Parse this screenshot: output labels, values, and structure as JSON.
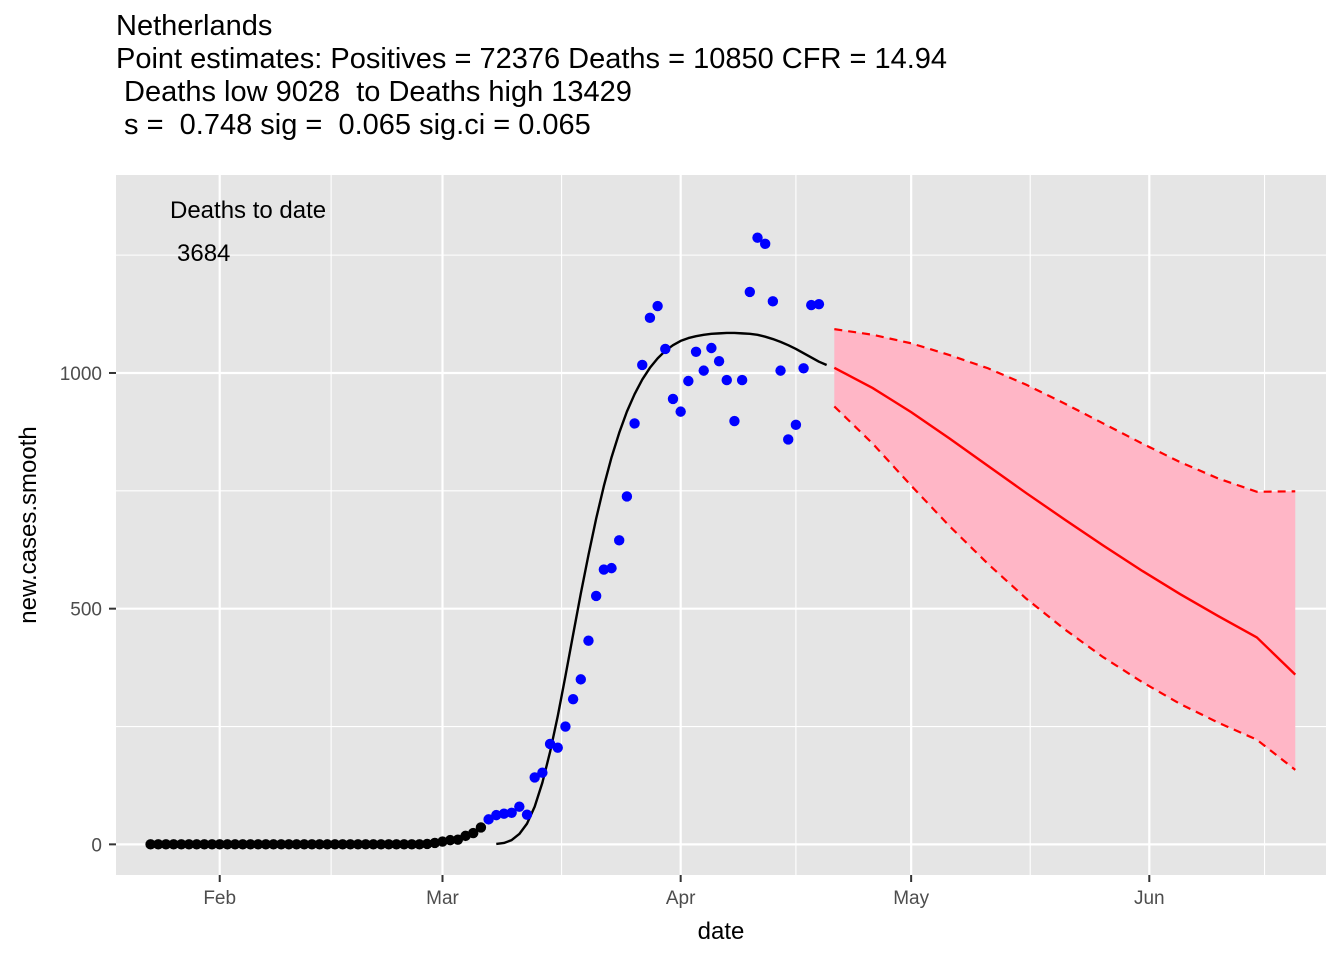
{
  "chart_data": {
    "type": "scatter",
    "title_lines": [
      "Netherlands",
      "Point estimates: Positives = 72376 Deaths = 10850 CFR = 14.94",
      " Deaths low 9028  to Deaths high 13429",
      " s =  0.748 sig =  0.065 sig.ci = 0.065"
    ],
    "xlabel": "date",
    "ylabel": "new.cases.smooth",
    "x_ticks": [
      "Feb",
      "Mar",
      "Apr",
      "May",
      "Jun"
    ],
    "y_ticks": [
      0,
      500,
      1000
    ],
    "ylim": [
      -65,
      1420
    ],
    "xlim_days": [
      -13.5,
      144
    ],
    "grid": true,
    "annotations": [
      "Deaths to date",
      "3684"
    ],
    "colors": {
      "panel": "#e5e5e5",
      "grid": "#ffffff",
      "observed_early": "#000000",
      "observed_recent": "#0000ff",
      "fit_line": "#000000",
      "forecast": "#ff0000",
      "forecast_band": "#ffb6c6"
    },
    "series": [
      {
        "name": "observed_early",
        "color": "#000000",
        "points": [
          [
            -9,
            0
          ],
          [
            -8,
            0
          ],
          [
            -7,
            0
          ],
          [
            -6,
            0
          ],
          [
            -5,
            0
          ],
          [
            -4,
            0
          ],
          [
            -3,
            0
          ],
          [
            -2,
            0
          ],
          [
            -1,
            0
          ],
          [
            0,
            0
          ],
          [
            1,
            0
          ],
          [
            2,
            0
          ],
          [
            3,
            0
          ],
          [
            4,
            0
          ],
          [
            5,
            0
          ],
          [
            6,
            0
          ],
          [
            7,
            0
          ],
          [
            8,
            0
          ],
          [
            9,
            0
          ],
          [
            10,
            0
          ],
          [
            11,
            0
          ],
          [
            12,
            0
          ],
          [
            13,
            0
          ],
          [
            14,
            0
          ],
          [
            15,
            0
          ],
          [
            16,
            0
          ],
          [
            17,
            0
          ],
          [
            18,
            0
          ],
          [
            19,
            0
          ],
          [
            20,
            0
          ],
          [
            21,
            0
          ],
          [
            22,
            0
          ],
          [
            23,
            0
          ],
          [
            24,
            0
          ],
          [
            25,
            0
          ],
          [
            26,
            0
          ],
          [
            27,
            1
          ],
          [
            28,
            3
          ],
          [
            29,
            6
          ],
          [
            30,
            9
          ],
          [
            31,
            10
          ],
          [
            32,
            18
          ],
          [
            33,
            24
          ],
          [
            34,
            36
          ]
        ]
      },
      {
        "name": "observed_recent",
        "color": "#0000ff",
        "points": [
          [
            35,
            53
          ],
          [
            36,
            62
          ],
          [
            37,
            65
          ],
          [
            38,
            67
          ],
          [
            39,
            80
          ],
          [
            40,
            63
          ],
          [
            41,
            142
          ],
          [
            42,
            152
          ],
          [
            43,
            213
          ],
          [
            44,
            205
          ],
          [
            45,
            250
          ],
          [
            46,
            308
          ],
          [
            47,
            350
          ],
          [
            48,
            432
          ],
          [
            49,
            527
          ],
          [
            50,
            583
          ],
          [
            51,
            586
          ],
          [
            52,
            645
          ],
          [
            53,
            738
          ],
          [
            54,
            893
          ],
          [
            55,
            1017
          ],
          [
            56,
            1117
          ],
          [
            57,
            1142
          ],
          [
            58,
            1051
          ],
          [
            59,
            945
          ],
          [
            60,
            918
          ],
          [
            61,
            983
          ],
          [
            62,
            1045
          ],
          [
            63,
            1005
          ],
          [
            64,
            1053
          ],
          [
            65,
            1025
          ],
          [
            66,
            985
          ],
          [
            67,
            898
          ],
          [
            68,
            985
          ],
          [
            69,
            1172
          ],
          [
            70,
            1287
          ],
          [
            71,
            1274
          ],
          [
            72,
            1152
          ],
          [
            73,
            1005
          ],
          [
            74,
            859
          ],
          [
            75,
            890
          ],
          [
            76,
            1010
          ],
          [
            77,
            1144
          ],
          [
            78,
            1146
          ]
        ]
      },
      {
        "name": "fit",
        "color": "#000000",
        "points": [
          [
            36,
            1
          ],
          [
            37,
            3
          ],
          [
            38,
            9
          ],
          [
            39,
            22
          ],
          [
            40,
            44
          ],
          [
            41,
            80
          ],
          [
            42,
            131
          ],
          [
            43,
            196
          ],
          [
            44,
            272
          ],
          [
            45,
            357
          ],
          [
            46,
            445
          ],
          [
            47,
            532
          ],
          [
            48,
            614
          ],
          [
            49,
            691
          ],
          [
            50,
            760
          ],
          [
            51,
            821
          ],
          [
            52,
            873
          ],
          [
            53,
            918
          ],
          [
            54,
            955
          ],
          [
            55,
            986
          ],
          [
            56,
            1011
          ],
          [
            57,
            1031
          ],
          [
            58,
            1047
          ],
          [
            59,
            1059
          ],
          [
            60,
            1068
          ],
          [
            61,
            1074
          ],
          [
            62,
            1078
          ],
          [
            63,
            1081
          ],
          [
            64,
            1083
          ],
          [
            65,
            1084
          ],
          [
            66,
            1085
          ],
          [
            67,
            1085
          ],
          [
            68,
            1084
          ],
          [
            69,
            1083
          ],
          [
            70,
            1081
          ],
          [
            71,
            1077
          ],
          [
            72,
            1072
          ],
          [
            73,
            1066
          ],
          [
            74,
            1059
          ],
          [
            75,
            1051
          ],
          [
            76,
            1042
          ],
          [
            77,
            1033
          ],
          [
            78,
            1024
          ],
          [
            79,
            1017
          ]
        ]
      },
      {
        "name": "forecast",
        "color": "#ff0000",
        "x": [
          80,
          85,
          90,
          95,
          100,
          105,
          110,
          115,
          120,
          125,
          130,
          135,
          140
        ],
        "center": [
          1011,
          968,
          917,
          861,
          803,
          745,
          689,
          634,
          581,
          531,
          484,
          439,
          360
        ],
        "upper": [
          1093,
          1081,
          1063,
          1038,
          1010,
          975,
          935,
          893,
          851,
          811,
          776,
          748,
          749
        ],
        "lower": [
          929,
          850,
          761,
          675,
          595,
          521,
          456,
          397,
          345,
          298,
          258,
          222,
          158
        ]
      }
    ]
  }
}
